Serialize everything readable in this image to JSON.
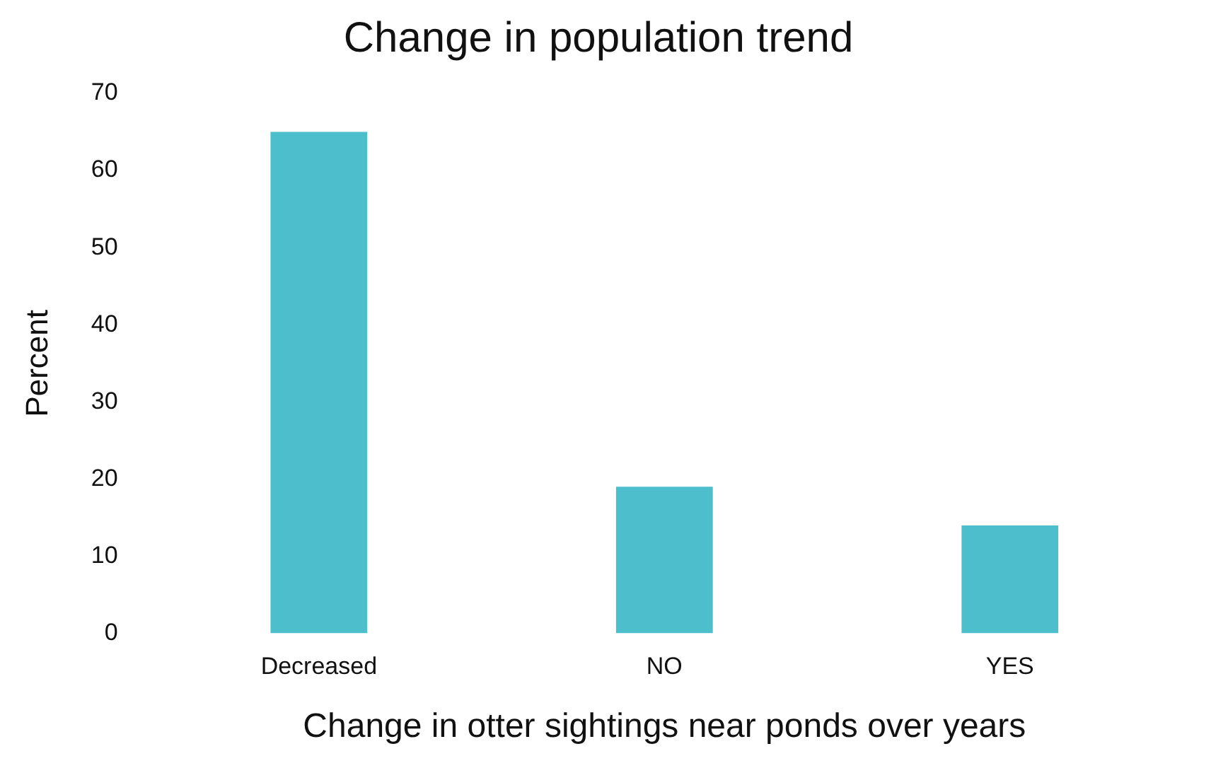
{
  "chart_data": {
    "type": "bar",
    "title": "Change in population trend",
    "xlabel": "Change in otter sightings near ponds over years",
    "ylabel": "Percent",
    "categories": [
      "Decreased",
      "NO",
      "YES"
    ],
    "values": [
      65,
      19,
      14
    ],
    "color": "#4dbfcc",
    "ylim": [
      0,
      70
    ],
    "yticks": [
      0,
      10,
      20,
      30,
      40,
      50,
      60,
      70
    ],
    "grid": false
  }
}
